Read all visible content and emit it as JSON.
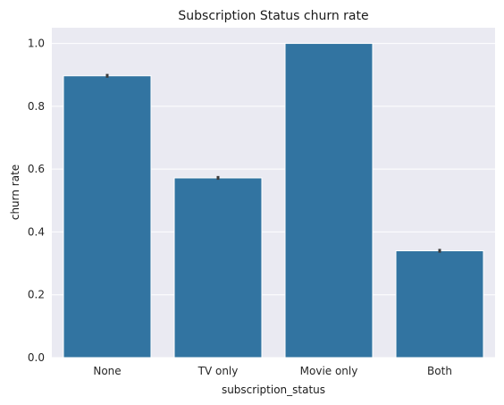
{
  "chart_data": {
    "type": "bar",
    "title": "Subscription Status churn rate",
    "xlabel": "subscription_status",
    "ylabel": "churn rate",
    "categories": [
      "None",
      "TV only",
      "Movie only",
      "Both"
    ],
    "values": [
      0.897,
      0.572,
      1.0,
      0.34
    ],
    "error_bars": [
      [
        0.891,
        0.903
      ],
      [
        0.566,
        0.578
      ],
      [
        1.0,
        1.0
      ],
      [
        0.334,
        0.346
      ]
    ],
    "ylim": [
      0,
      1.05
    ],
    "yticks": [
      "0.0",
      "0.2",
      "0.4",
      "0.6",
      "0.8",
      "1.0"
    ],
    "grid": true,
    "colors": {
      "bar": "#3274a1",
      "background": "#eaeaf2",
      "grid": "#ffffff",
      "errorbar": "#3d3d3d"
    }
  }
}
